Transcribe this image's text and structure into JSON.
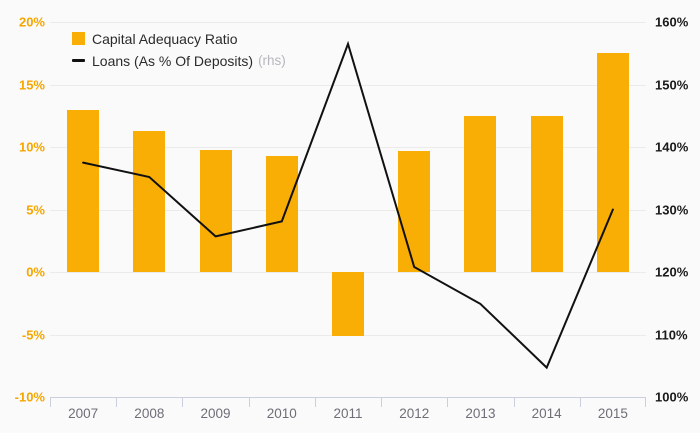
{
  "legend": {
    "items": [
      {
        "label": "Capital Adequacy Ratio",
        "swatch": "square",
        "color": "#f9ae06"
      },
      {
        "label": "Loans (As % Of Deposits)",
        "suffix": "(rhs)",
        "swatch": "line",
        "color": "#111111"
      }
    ]
  },
  "chart_data": {
    "type": "bar+line combo",
    "categories": [
      "2007",
      "2008",
      "2009",
      "2010",
      "2011",
      "2012",
      "2013",
      "2014",
      "2015"
    ],
    "series": [
      {
        "name": "Capital Adequacy Ratio",
        "type": "bar",
        "axis": "left",
        "color": "#f9ae06",
        "values": [
          13.0,
          11.3,
          9.8,
          9.3,
          -5.1,
          9.7,
          12.5,
          12.5,
          17.5
        ]
      },
      {
        "name": "Loans (As % Of Deposits)",
        "type": "line",
        "axis": "right",
        "color": "#111111",
        "values": [
          137.5,
          135.2,
          125.7,
          128.1,
          156.5,
          120.8,
          114.9,
          104.7,
          130.0
        ]
      }
    ],
    "left_axis": {
      "min": -10,
      "max": 20,
      "step": 5,
      "labels": [
        "20%",
        "15%",
        "10%",
        "5%",
        "0%",
        "-5%",
        "-10%"
      ],
      "label_color": "#f5a700"
    },
    "right_axis": {
      "min": 100,
      "max": 160,
      "step": 10,
      "labels": [
        "160%",
        "150%",
        "140%",
        "130%",
        "120%",
        "110%",
        "100%"
      ],
      "label_color": "#1a1a1a"
    },
    "grid": "horizontal only",
    "legend_position": "top-left inside plot",
    "title": "",
    "xlabel": "",
    "ylabel": ""
  },
  "colors": {
    "background": "#fafafa",
    "gridline": "#ebebeb",
    "x_axis_line": "#c9cfdc",
    "x_label": "#6e6e78",
    "bar": "#f9ae06",
    "line": "#111111"
  }
}
